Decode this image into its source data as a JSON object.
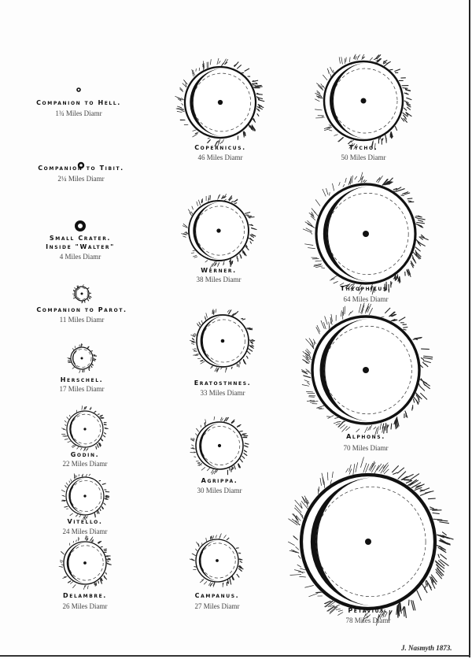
{
  "plate": {
    "signature": "J. Nasmyth 1873.",
    "ink_color": "#111111",
    "paper_color": "#fdfdfd",
    "craters": [
      {
        "name": "Companion to Hell.",
        "diameter_text": "1¾ Miles Diamr",
        "diameter_miles": 1.75
      },
      {
        "name": "Companion to Tibit.",
        "diameter_text": "2¼ Miles Diamr",
        "diameter_miles": 2.25
      },
      {
        "name": "Small Crater.",
        "name_line2": "Inside \"Walter\"",
        "diameter_text": "4 Miles Diamr",
        "diameter_miles": 4
      },
      {
        "name": "Companion to Parot.",
        "diameter_text": "11 Miles Diamr",
        "diameter_miles": 11
      },
      {
        "name": "Herschel.",
        "diameter_text": "17 Miles Diamr",
        "diameter_miles": 17
      },
      {
        "name": "Godin.",
        "diameter_text": "22 Miles Diamr",
        "diameter_miles": 22
      },
      {
        "name": "Vitello.",
        "diameter_text": "24 Miles Diamr",
        "diameter_miles": 24
      },
      {
        "name": "Delambre.",
        "diameter_text": "26 Miles Diamr",
        "diameter_miles": 26
      },
      {
        "name": "Copernicus.",
        "diameter_text": "46 Miles Diamr",
        "diameter_miles": 46
      },
      {
        "name": "Werner.",
        "diameter_text": "38 Miles Diamr",
        "diameter_miles": 38
      },
      {
        "name": "Eratosthnes.",
        "diameter_text": "33 Miles Diamr",
        "diameter_miles": 33
      },
      {
        "name": "Agrippa.",
        "diameter_text": "30 Miles Diamr",
        "diameter_miles": 30
      },
      {
        "name": "Campanus.",
        "diameter_text": "27 Miles Diamr",
        "diameter_miles": 27
      },
      {
        "name": "Tycho.",
        "diameter_text": "50 Miles Diamr",
        "diameter_miles": 50
      },
      {
        "name": "Theophilus.",
        "diameter_text": "64 Miles Diamr",
        "diameter_miles": 64
      },
      {
        "name": "Alphons.",
        "diameter_text": "70 Miles Diamr",
        "diameter_miles": 70
      },
      {
        "name": "Petavius.",
        "diameter_text": "78 Miles Diamr",
        "diameter_miles": 78
      }
    ]
  }
}
